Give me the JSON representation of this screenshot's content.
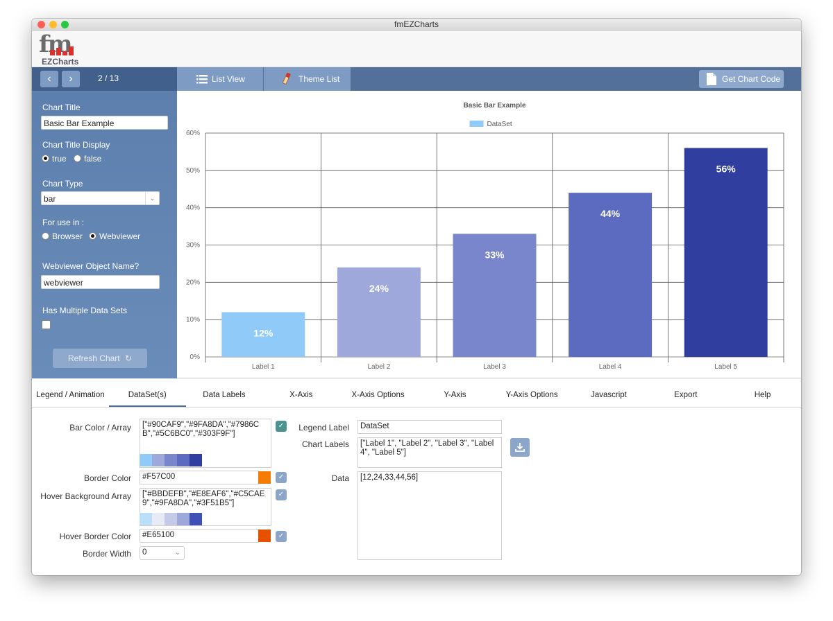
{
  "window": {
    "title": "fmEZCharts"
  },
  "logo": {
    "mark": "fm",
    "sub": "EZCharts"
  },
  "toolbar": {
    "pager": "2 / 13",
    "list_view": "List View",
    "theme_list": "Theme List",
    "get_code": "Get Chart Code"
  },
  "sidebar": {
    "chart_title_label": "Chart Title",
    "chart_title_value": "Basic Bar Example",
    "title_display_label": "Chart Title Display",
    "title_display_options": [
      "true",
      "false"
    ],
    "title_display_selected": "true",
    "chart_type_label": "Chart Type",
    "chart_type_value": "bar",
    "for_use_label": "For use in :",
    "for_use_options": [
      "Browser",
      "Webviewer"
    ],
    "for_use_selected": "Webviewer",
    "webviewer_name_label": "Webviewer Object Name?",
    "webviewer_name_value": "webviewer",
    "multi_label": "Has Multiple Data Sets",
    "multi_checked": false,
    "refresh_label": "Refresh Chart"
  },
  "tabs": [
    "Legend / Animation",
    "DataSet(s)",
    "Data Labels",
    "X-Axis",
    "X-Axis Options",
    "Y-Axis",
    "Y-Axis Options",
    "Javascript",
    "Export",
    "Help"
  ],
  "active_tab": "DataSet(s)",
  "dataset": {
    "bar_color_label": "Bar Color / Array",
    "bar_color_value": "[\"#90CAF9\",\"#9FA8DA\",\"#7986CB\",\"#5C6BC0\",\"#303F9F\"]",
    "bar_colors": [
      "#90CAF9",
      "#9FA8DA",
      "#7986CB",
      "#5C6BC0",
      "#303F9F"
    ],
    "border_color_label": "Border Color",
    "border_color_value": "#F57C00",
    "hover_bg_label": "Hover Background Array",
    "hover_bg_value": "[\"#BBDEFB\",\"#E8EAF6\",\"#C5CAE9\",\"#9FA8DA\",\"#3F51B5\"]",
    "hover_colors": [
      "#BBDEFB",
      "#E8EAF6",
      "#C5CAE9",
      "#9FA8DA",
      "#3F51B5"
    ],
    "hover_border_label": "Hover Border Color",
    "hover_border_value": "#E65100",
    "border_width_label": "Border Width",
    "border_width_value": "0",
    "legend_label_label": "Legend Label",
    "legend_label_value": "DataSet",
    "chart_labels_label": "Chart Labels",
    "chart_labels_value": "[\"Label 1\", \"Label 2\", \"Label 3\", \"Label 4\", \"Label 5\"]",
    "data_label": "Data",
    "data_value": "[12,24,33,44,56]"
  },
  "chart_data": {
    "type": "bar",
    "title": "Basic Bar Example",
    "categories": [
      "Label 1",
      "Label 2",
      "Label 3",
      "Label 4",
      "Label 5"
    ],
    "series": [
      {
        "name": "DataSet",
        "values": [
          12,
          24,
          33,
          44,
          56
        ]
      }
    ],
    "colors": [
      "#90CAF9",
      "#9FA8DA",
      "#7986CB",
      "#5C6BC0",
      "#303F9F"
    ],
    "value_labels": [
      "12%",
      "24%",
      "33%",
      "44%",
      "56%"
    ],
    "yticks": [
      "0%",
      "10%",
      "20%",
      "30%",
      "40%",
      "50%",
      "60%"
    ],
    "ylim": [
      0,
      60
    ],
    "grid": true,
    "legend": "top"
  }
}
